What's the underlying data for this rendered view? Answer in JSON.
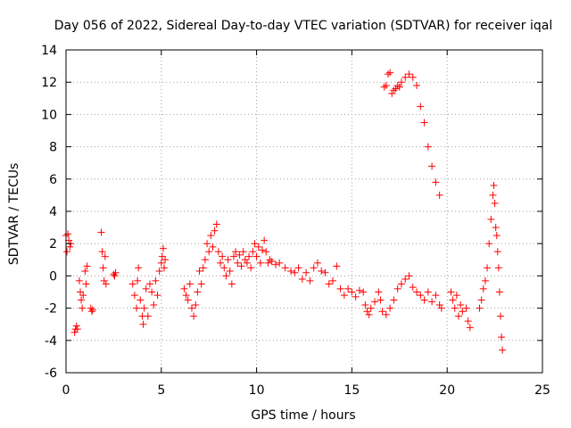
{
  "chart_data": {
    "type": "scatter",
    "title": "Day 056 of 2022, Sidereal Day-to-day VTEC variation (SDTVAR) for receiver iqal",
    "xlabel": "GPS time / hours",
    "ylabel": "SDTVAR / TECUs",
    "xlim": [
      0,
      25
    ],
    "ylim": [
      -6,
      14
    ],
    "xticks": [
      0,
      5,
      10,
      15,
      20,
      25
    ],
    "xtick_labels": [
      "0",
      "5",
      "10",
      "15",
      "20",
      "25"
    ],
    "yticks": [
      -6,
      -4,
      -2,
      0,
      2,
      4,
      6,
      8,
      10,
      12,
      14
    ],
    "ytick_labels": [
      "-6",
      "-4",
      "-2",
      "0",
      "2",
      "4",
      "6",
      "8",
      "10",
      "12",
      "14"
    ],
    "grid": true,
    "marker": "+",
    "color": "#ff0000",
    "series": [
      {
        "name": "SDTVAR",
        "points": [
          [
            0.0,
            2.5
          ],
          [
            0.05,
            1.5
          ],
          [
            0.1,
            2.6
          ],
          [
            0.15,
            2.2
          ],
          [
            0.2,
            1.8
          ],
          [
            0.25,
            2.0
          ],
          [
            0.45,
            -3.5
          ],
          [
            0.5,
            -3.3
          ],
          [
            0.55,
            -3.1
          ],
          [
            0.6,
            -3.3
          ],
          [
            0.7,
            -0.3
          ],
          [
            0.75,
            -1.0
          ],
          [
            0.8,
            -1.5
          ],
          [
            0.85,
            -2.0
          ],
          [
            0.9,
            -1.2
          ],
          [
            1.0,
            0.3
          ],
          [
            1.05,
            -0.5
          ],
          [
            1.1,
            0.6
          ],
          [
            1.3,
            -2.0
          ],
          [
            1.35,
            -2.2
          ],
          [
            1.4,
            -2.1
          ],
          [
            1.85,
            2.7
          ],
          [
            1.9,
            1.5
          ],
          [
            1.95,
            0.5
          ],
          [
            2.0,
            -0.3
          ],
          [
            2.05,
            1.2
          ],
          [
            2.1,
            -0.5
          ],
          [
            2.5,
            0.1
          ],
          [
            2.55,
            0.0
          ],
          [
            2.6,
            0.2
          ],
          [
            3.5,
            -0.5
          ],
          [
            3.6,
            -1.2
          ],
          [
            3.7,
            -2.0
          ],
          [
            3.75,
            -0.3
          ],
          [
            3.8,
            0.5
          ],
          [
            3.9,
            -1.5
          ],
          [
            4.0,
            -2.5
          ],
          [
            4.05,
            -3.0
          ],
          [
            4.1,
            -2.0
          ],
          [
            4.2,
            -0.8
          ],
          [
            4.3,
            -2.5
          ],
          [
            4.4,
            -0.5
          ],
          [
            4.5,
            -1.0
          ],
          [
            4.6,
            -1.8
          ],
          [
            4.7,
            -0.3
          ],
          [
            4.8,
            -1.2
          ],
          [
            4.9,
            0.3
          ],
          [
            5.0,
            0.8
          ],
          [
            5.05,
            1.2
          ],
          [
            5.1,
            1.7
          ],
          [
            5.15,
            0.5
          ],
          [
            5.2,
            1.0
          ],
          [
            6.2,
            -0.8
          ],
          [
            6.3,
            -1.2
          ],
          [
            6.4,
            -1.5
          ],
          [
            6.5,
            -0.5
          ],
          [
            6.6,
            -2.0
          ],
          [
            6.7,
            -2.5
          ],
          [
            6.8,
            -1.8
          ],
          [
            6.9,
            -1.0
          ],
          [
            7.0,
            0.3
          ],
          [
            7.1,
            -0.5
          ],
          [
            7.2,
            0.5
          ],
          [
            7.3,
            1.0
          ],
          [
            7.4,
            2.0
          ],
          [
            7.5,
            1.5
          ],
          [
            7.6,
            2.5
          ],
          [
            7.7,
            1.8
          ],
          [
            7.8,
            2.8
          ],
          [
            7.9,
            3.2
          ],
          [
            8.0,
            1.5
          ],
          [
            8.1,
            0.8
          ],
          [
            8.2,
            1.2
          ],
          [
            8.3,
            0.5
          ],
          [
            8.4,
            0.0
          ],
          [
            8.5,
            1.0
          ],
          [
            8.6,
            0.3
          ],
          [
            8.7,
            -0.5
          ],
          [
            8.8,
            1.2
          ],
          [
            8.9,
            1.5
          ],
          [
            9.0,
            0.8
          ],
          [
            9.1,
            1.3
          ],
          [
            9.2,
            0.6
          ],
          [
            9.3,
            1.5
          ],
          [
            9.4,
            1.0
          ],
          [
            9.5,
            0.8
          ],
          [
            9.6,
            1.2
          ],
          [
            9.7,
            0.5
          ],
          [
            9.8,
            1.5
          ],
          [
            9.9,
            2.0
          ],
          [
            10.0,
            1.2
          ],
          [
            10.1,
            1.8
          ],
          [
            10.2,
            0.8
          ],
          [
            10.3,
            1.6
          ],
          [
            10.4,
            2.2
          ],
          [
            10.5,
            1.5
          ],
          [
            10.6,
            0.8
          ],
          [
            10.7,
            1.0
          ],
          [
            10.8,
            0.9
          ],
          [
            11.0,
            0.7
          ],
          [
            11.2,
            0.8
          ],
          [
            11.5,
            0.5
          ],
          [
            11.8,
            0.3
          ],
          [
            12.0,
            0.2
          ],
          [
            12.2,
            0.5
          ],
          [
            12.4,
            -0.2
          ],
          [
            12.6,
            0.2
          ],
          [
            12.8,
            -0.3
          ],
          [
            13.0,
            0.5
          ],
          [
            13.2,
            0.8
          ],
          [
            13.4,
            0.3
          ],
          [
            13.6,
            0.2
          ],
          [
            13.8,
            -0.5
          ],
          [
            14.0,
            -0.3
          ],
          [
            14.2,
            0.6
          ],
          [
            14.4,
            -0.8
          ],
          [
            14.6,
            -1.2
          ],
          [
            14.8,
            -0.8
          ],
          [
            15.0,
            -1.0
          ],
          [
            15.2,
            -1.3
          ],
          [
            15.4,
            -0.9
          ],
          [
            15.6,
            -1.0
          ],
          [
            15.7,
            -1.8
          ],
          [
            15.8,
            -2.2
          ],
          [
            15.9,
            -2.4
          ],
          [
            16.0,
            -2.0
          ],
          [
            16.2,
            -1.6
          ],
          [
            16.4,
            -1.0
          ],
          [
            16.5,
            -1.5
          ],
          [
            16.6,
            -2.2
          ],
          [
            16.8,
            -2.4
          ],
          [
            17.0,
            -2.0
          ],
          [
            17.2,
            -1.5
          ],
          [
            17.4,
            -0.8
          ],
          [
            17.6,
            -0.5
          ],
          [
            17.8,
            -0.2
          ],
          [
            18.0,
            0.0
          ],
          [
            18.2,
            -0.7
          ],
          [
            18.4,
            -1.0
          ],
          [
            18.6,
            -1.2
          ],
          [
            18.8,
            -1.5
          ],
          [
            19.0,
            -1.0
          ],
          [
            19.2,
            -1.6
          ],
          [
            19.4,
            -1.2
          ],
          [
            19.6,
            -1.8
          ],
          [
            19.7,
            -2.0
          ],
          [
            16.7,
            11.7
          ],
          [
            16.8,
            11.8
          ],
          [
            16.9,
            12.5
          ],
          [
            17.0,
            12.6
          ],
          [
            17.1,
            11.3
          ],
          [
            17.2,
            11.5
          ],
          [
            17.3,
            11.6
          ],
          [
            17.4,
            11.8
          ],
          [
            17.5,
            11.7
          ],
          [
            17.6,
            12.0
          ],
          [
            17.8,
            12.3
          ],
          [
            18.0,
            12.5
          ],
          [
            18.2,
            12.3
          ],
          [
            18.4,
            11.8
          ],
          [
            18.6,
            10.5
          ],
          [
            18.8,
            9.5
          ],
          [
            19.0,
            8.0
          ],
          [
            19.2,
            6.8
          ],
          [
            19.4,
            5.8
          ],
          [
            19.6,
            5.0
          ],
          [
            20.2,
            -1.0
          ],
          [
            20.3,
            -1.5
          ],
          [
            20.4,
            -2.0
          ],
          [
            20.5,
            -1.2
          ],
          [
            20.6,
            -2.5
          ],
          [
            20.7,
            -1.8
          ],
          [
            20.8,
            -2.2
          ],
          [
            21.0,
            -2.0
          ],
          [
            21.1,
            -2.8
          ],
          [
            21.2,
            -3.2
          ],
          [
            21.7,
            -2.0
          ],
          [
            21.8,
            -1.5
          ],
          [
            21.9,
            -0.8
          ],
          [
            22.0,
            -0.3
          ],
          [
            22.1,
            0.5
          ],
          [
            22.2,
            2.0
          ],
          [
            22.3,
            3.5
          ],
          [
            22.4,
            5.0
          ],
          [
            22.45,
            5.6
          ],
          [
            22.5,
            4.5
          ],
          [
            22.55,
            3.0
          ],
          [
            22.6,
            2.5
          ],
          [
            22.65,
            1.5
          ],
          [
            22.7,
            0.5
          ],
          [
            22.75,
            -1.0
          ],
          [
            22.8,
            -2.5
          ],
          [
            22.85,
            -3.8
          ],
          [
            22.9,
            -4.6
          ]
        ]
      }
    ]
  },
  "colors": {
    "marker": "#ff0000",
    "grid": "#a0a0a0",
    "frame": "#000000"
  }
}
